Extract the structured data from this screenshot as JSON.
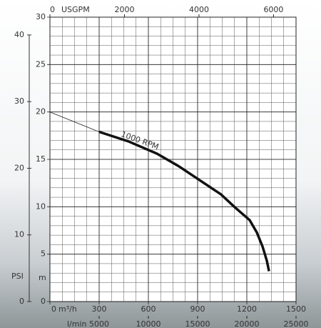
{
  "chart_data": {
    "type": "line",
    "x_label": "m³/h",
    "xlim": [
      0,
      1500
    ],
    "xticks": [
      0,
      300,
      600,
      900,
      1200,
      1500
    ],
    "x2_label": "USGPM",
    "x2lim": [
      0,
      6604
    ],
    "x2ticks": [
      0,
      2000,
      4000,
      6000
    ],
    "x3_label": "l/min",
    "x3lim": [
      0,
      25000
    ],
    "x3ticks": [
      5000,
      10000,
      15000,
      20000,
      25000
    ],
    "y_label": "m",
    "ylim": [
      0,
      30
    ],
    "yticks": [
      0,
      5,
      10,
      15,
      20,
      25,
      30
    ],
    "y2_label": "PSI",
    "y2lim": [
      0,
      42.67
    ],
    "y2ticks": [
      0,
      10,
      20,
      30,
      40
    ],
    "grid": true,
    "series": [
      {
        "name": "1000 RPM",
        "color": "#111111",
        "x": [
          300,
          478,
          652,
          783,
          913,
          1043,
          1130,
          1217,
          1261,
          1296,
          1322,
          1335
        ],
        "values": [
          17.9,
          16.9,
          15.6,
          14.3,
          12.8,
          11.3,
          9.9,
          8.6,
          7.3,
          5.8,
          4.3,
          3.2
        ]
      },
      {
        "color": "#222222",
        "x": [
          0,
          300
        ],
        "values": [
          20,
          17.9
        ]
      }
    ]
  }
}
